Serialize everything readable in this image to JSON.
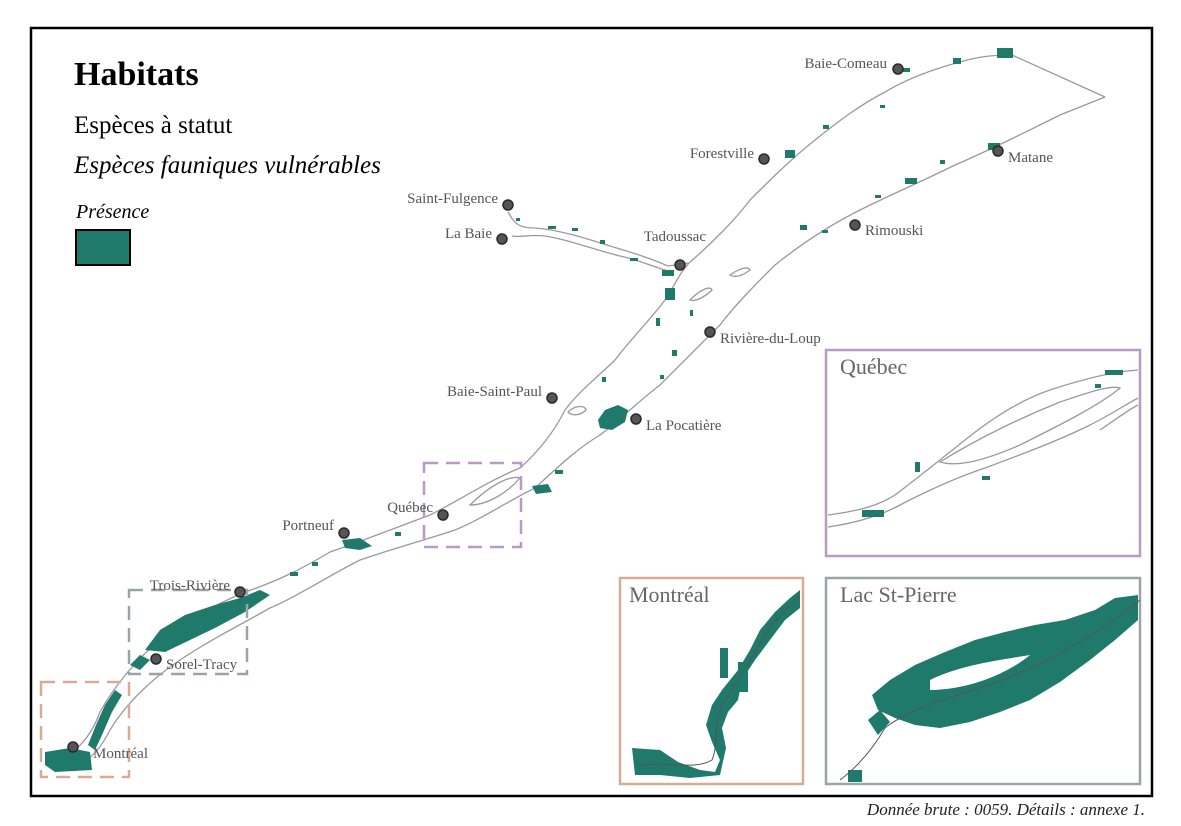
{
  "legend": {
    "title": "Habitats",
    "subtitle": "Espèces à statut",
    "category": "Espèces fauniques vulnérables",
    "item_label": "Présence"
  },
  "colors": {
    "habitat": "#1f7a6b",
    "river_line": "#9a9a9a",
    "city_marker": "#555555",
    "inset_quebec": "#b89ac4",
    "inset_montreal": "#d9ab93",
    "inset_lac": "#99a3aa"
  },
  "cities": [
    {
      "name": "Baie-Comeau"
    },
    {
      "name": "Forestville"
    },
    {
      "name": "Matane"
    },
    {
      "name": "Saint-Fulgence"
    },
    {
      "name": "La Baie"
    },
    {
      "name": "Tadoussac"
    },
    {
      "name": "Rimouski"
    },
    {
      "name": "Rivière-du-Loup"
    },
    {
      "name": "Baie-Saint-Paul"
    },
    {
      "name": "La Pocatière"
    },
    {
      "name": "Québec"
    },
    {
      "name": "Portneuf"
    },
    {
      "name": "Trois-Rivière"
    },
    {
      "name": "Sorel-Tracy"
    },
    {
      "name": "Montréal"
    }
  ],
  "insets": [
    {
      "title": "Québec"
    },
    {
      "title": "Montréal"
    },
    {
      "title": "Lac St-Pierre"
    }
  ],
  "footer": "Donnée brute : 0059. Détails : annexe 1."
}
